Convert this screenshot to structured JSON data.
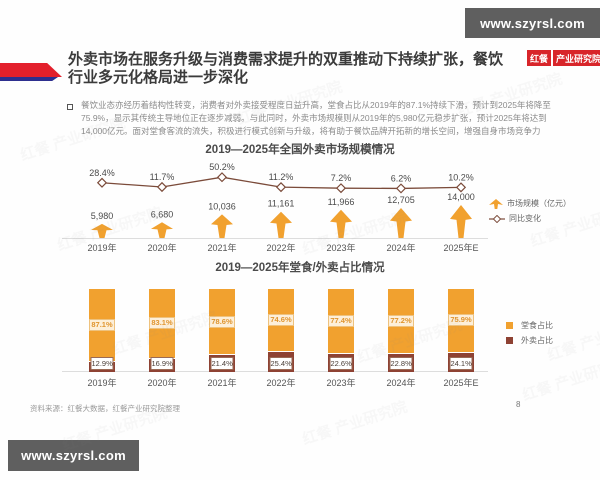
{
  "page": {
    "number": "8"
  },
  "top_bar": {
    "url": "www.szyrsl.com"
  },
  "bottom_bar": {
    "url": "www.szyrsl.com"
  },
  "logo": {
    "brand": "红餐",
    "org": "产业研究院"
  },
  "watermark": {
    "text": "红餐 产业研究院"
  },
  "title": {
    "line1": "外卖市场在服务升级与消费需求提升的双重推动下持续扩张，餐饮",
    "line2": "行业多元化格局进一步深化"
  },
  "intro": {
    "lines": [
      "餐饮业态亦经历着结构性转变，消费者对外卖接受程度日益升高，堂食占比从2019年的87.1%持续下滑，预计到2025年将降至",
      "75.9%，显示其传统主导地位正在逐步减弱。与此同时，外卖市场规模则从2019年的5,980亿元稳步扩张，预计2025年将达到",
      "14,000亿元。面对堂食客流的流失，积极进行模式创新与升级，将有助于餐饮品牌开拓新的增长空间，增强自身市场竞争力"
    ]
  },
  "chart_data": [
    {
      "type": "bar",
      "subtype": "arrow-bar-with-line",
      "title": "2019—2025年全国外卖市场规模情况",
      "categories": [
        "2019年",
        "2020年",
        "2021年",
        "2022年",
        "2023年",
        "2024年",
        "2025年E"
      ],
      "series": [
        {
          "name": "市场规模（亿元）",
          "type": "bar",
          "color": "#f1a12f",
          "values": [
            5980,
            6680,
            10036,
            11161,
            11966,
            12705,
            14000
          ],
          "labels": [
            "5,980",
            "6,680",
            "10,036",
            "11,161",
            "11,966",
            "12,705",
            "14,000"
          ]
        },
        {
          "name": "同比变化",
          "type": "line",
          "color": "#7b4b3a",
          "values": [
            28.4,
            11.7,
            50.2,
            11.2,
            7.2,
            6.2,
            10.2
          ],
          "labels": [
            "28.4%",
            "11.7%",
            "50.2%",
            "11.2%",
            "7.2%",
            "6.2%",
            "10.2%"
          ]
        }
      ],
      "ylim": [
        0,
        14000
      ],
      "legend_position": "right",
      "grid": false
    },
    {
      "type": "bar",
      "subtype": "stacked-100",
      "title": "2019—2025年堂食/外卖占比情况",
      "categories": [
        "2019年",
        "2020年",
        "2021年",
        "2022年",
        "2023年",
        "2024年",
        "2025年E"
      ],
      "series": [
        {
          "name": "堂食占比",
          "color": "#f1a12f",
          "values": [
            87.1,
            83.1,
            78.6,
            74.6,
            77.4,
            77.2,
            75.9
          ],
          "labels": [
            "87.1%",
            "83.1%",
            "78.6%",
            "74.6%",
            "77.4%",
            "77.2%",
            "75.9%"
          ]
        },
        {
          "name": "外卖占比",
          "color": "#8e4233",
          "values": [
            12.9,
            16.9,
            21.4,
            25.4,
            22.6,
            22.8,
            24.1
          ],
          "labels": [
            "12.9%",
            "16.9%",
            "21.4%",
            "25.4%",
            "22.6%",
            "22.8%",
            "24.1%"
          ]
        }
      ],
      "ylim": [
        0,
        100
      ],
      "legend_position": "right",
      "grid": false
    }
  ],
  "footer": {
    "source": "资料来源：红餐大数据，红餐产业研究院整理"
  },
  "colors": {
    "accent_orange": "#f1a12f",
    "accent_dark_red": "#8e4233",
    "line_brown": "#7b4b3a",
    "logo_red": "#d8252a",
    "deco_red": "#e3202c",
    "deco_navy": "#2d2f8f",
    "url_bar_gray": "#5f5f5f"
  }
}
